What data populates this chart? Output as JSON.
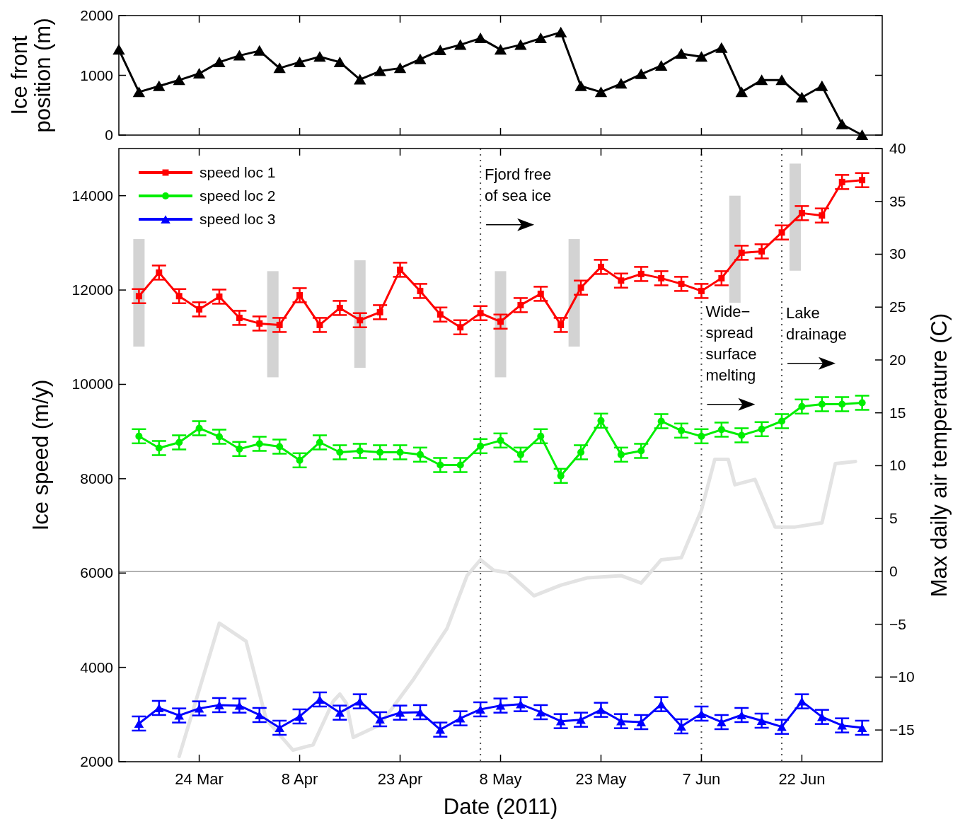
{
  "chart_data": [
    {
      "type": "line",
      "ylabel": "Ice front\nposition (m)",
      "x": [
        "2011-03-12",
        "2011-03-15",
        "2011-03-18",
        "2011-03-21",
        "2011-03-24",
        "2011-03-27",
        "2011-03-30",
        "2011-04-02",
        "2011-04-05",
        "2011-04-08",
        "2011-04-11",
        "2011-04-14",
        "2011-04-17",
        "2011-04-20",
        "2011-04-23",
        "2011-04-26",
        "2011-04-29",
        "2011-05-02",
        "2011-05-05",
        "2011-05-08",
        "2011-05-11",
        "2011-05-14",
        "2011-05-17",
        "2011-05-20",
        "2011-05-23",
        "2011-05-26",
        "2011-05-29",
        "2011-06-01",
        "2011-06-04",
        "2011-06-07",
        "2011-06-10",
        "2011-06-13",
        "2011-06-16",
        "2011-06-19",
        "2011-06-22",
        "2011-06-25",
        "2011-06-28",
        "2011-07-01"
      ],
      "values": [
        1430,
        720,
        820,
        920,
        1030,
        1220,
        1330,
        1410,
        1120,
        1220,
        1310,
        1220,
        930,
        1070,
        1120,
        1270,
        1420,
        1510,
        1620,
        1430,
        1510,
        1620,
        1720,
        820,
        720,
        860,
        1020,
        1160,
        1360,
        1310,
        1460,
        720,
        920,
        920,
        630,
        820,
        180,
        0
      ],
      "color": "#000000",
      "marker": "triangle",
      "xlim": [
        "2011-03-12",
        "2011-07-04"
      ],
      "ylim": [
        0,
        2000
      ],
      "yticks": [
        0,
        1000,
        2000
      ],
      "xticks": [
        {
          "value": "2011-03-24",
          "label": null
        },
        {
          "value": "2011-04-08",
          "label": null
        },
        {
          "value": "2011-04-23",
          "label": null
        },
        {
          "value": "2011-05-08",
          "label": null
        },
        {
          "value": "2011-05-23",
          "label": null
        },
        {
          "value": "2011-06-07",
          "label": null
        },
        {
          "value": "2011-06-22",
          "label": null
        }
      ],
      "tick_labels": "y"
    },
    {
      "type": "line",
      "xlabel": "Date (2011)",
      "ylabel": "Ice speed (m/y)",
      "y2label": "Max daily air temperature (C)",
      "legend": "top left",
      "xlim": [
        "2011-03-12",
        "2011-07-04"
      ],
      "ylim": [
        2000,
        15000
      ],
      "yticks": [
        2000,
        4000,
        6000,
        8000,
        10000,
        12000,
        14000
      ],
      "y2lim": [
        -18,
        40
      ],
      "y2ticks": [
        -15,
        -10,
        -5,
        0,
        5,
        10,
        15,
        20,
        25,
        30,
        35,
        40
      ],
      "xticks": [
        {
          "value": "2011-03-24",
          "label": "24 Mar"
        },
        {
          "value": "2011-04-08",
          "label": "8 Apr"
        },
        {
          "value": "2011-04-23",
          "label": "23 Apr"
        },
        {
          "value": "2011-05-08",
          "label": "8 May"
        },
        {
          "value": "2011-05-23",
          "label": "23 May"
        },
        {
          "value": "2011-06-07",
          "label": "7 Jun"
        },
        {
          "value": "2011-06-22",
          "label": "22 Jun"
        }
      ],
      "x": [
        "2011-03-15",
        "2011-03-18",
        "2011-03-21",
        "2011-03-24",
        "2011-03-27",
        "2011-03-30",
        "2011-04-02",
        "2011-04-05",
        "2011-04-08",
        "2011-04-11",
        "2011-04-14",
        "2011-04-17",
        "2011-04-20",
        "2011-04-23",
        "2011-04-26",
        "2011-04-29",
        "2011-05-02",
        "2011-05-05",
        "2011-05-08",
        "2011-05-11",
        "2011-05-14",
        "2011-05-17",
        "2011-05-20",
        "2011-05-23",
        "2011-05-26",
        "2011-05-29",
        "2011-06-01",
        "2011-06-04",
        "2011-06-07",
        "2011-06-10",
        "2011-06-13",
        "2011-06-16",
        "2011-06-19",
        "2011-06-22",
        "2011-06-25",
        "2011-06-28",
        "2011-07-01"
      ],
      "series": [
        {
          "type": "line",
          "axis": "y2",
          "color": "#e3e3e3",
          "marker": "none",
          "x": [
            "2011-03-21",
            "2011-03-27",
            "2011-03-31",
            "2011-04-03",
            "2011-04-07",
            "2011-04-10",
            "2011-04-13",
            "2011-04-14",
            "2011-04-15",
            "2011-04-16",
            "2011-04-20",
            "2011-04-25",
            "2011-04-30",
            "2011-05-03",
            "2011-05-05",
            "2011-05-07",
            "2011-05-09",
            "2011-05-10",
            "2011-05-13",
            "2011-05-17",
            "2011-05-21",
            "2011-05-26",
            "2011-05-29",
            "2011-06-01",
            "2011-06-04",
            "2011-06-07",
            "2011-06-09",
            "2011-06-11",
            "2011-06-12",
            "2011-06-15",
            "2011-06-18",
            "2011-06-21",
            "2011-06-25",
            "2011-06-27",
            "2011-06-30"
          ],
          "values": [
            -17.5,
            -4.9,
            -6.6,
            -14,
            -16.9,
            -16.4,
            -12.3,
            -11.6,
            -12.5,
            -15.7,
            -14.5,
            -10.2,
            -5.4,
            -0.4,
            1.1,
            0.1,
            -0.1,
            -0.6,
            -2.3,
            -1.3,
            -0.6,
            -0.4,
            -1.1,
            1.1,
            1.3,
            5.8,
            10.6,
            10.6,
            8.2,
            8.7,
            4.2,
            4.2,
            4.6,
            10.2,
            10.4
          ]
        },
        {
          "type": "bar",
          "color": "#d3d3d3",
          "x": [
            "2011-03-15",
            "2011-04-04",
            "2011-04-17",
            "2011-05-08",
            "2011-05-19",
            "2011-06-12",
            "2011-06-21"
          ],
          "base": [
            10800,
            10150,
            10350,
            10150,
            10800,
            11730,
            12410
          ],
          "values": [
            2280,
            2250,
            2280,
            2250,
            2280,
            2270,
            2270
          ]
        },
        {
          "name": "speed loc 1",
          "color": "#ff0000",
          "marker": "square",
          "values": [
            11870,
            12370,
            11870,
            11590,
            11860,
            11410,
            11290,
            11260,
            11890,
            11260,
            11620,
            11360,
            11530,
            12430,
            11980,
            11480,
            11210,
            11510,
            11330,
            11680,
            11920,
            11260,
            12050,
            12490,
            12200,
            12340,
            12250,
            12130,
            11980,
            12250,
            12790,
            12820,
            13220,
            13630,
            13580,
            14290,
            14330
          ],
          "errors": [
            150,
            150,
            150,
            150,
            150,
            150,
            150,
            150,
            150,
            150,
            150,
            150,
            150,
            150,
            150,
            150,
            150,
            150,
            150,
            150,
            150,
            150,
            150,
            150,
            150,
            150,
            150,
            150,
            150,
            150,
            150,
            150,
            150,
            150,
            150,
            150,
            150
          ]
        },
        {
          "name": "speed loc 2",
          "color": "#00ee00",
          "marker": "circle",
          "values": [
            8900,
            8650,
            8770,
            9070,
            8890,
            8630,
            8740,
            8680,
            8390,
            8770,
            8560,
            8590,
            8560,
            8560,
            8510,
            8290,
            8290,
            8690,
            8810,
            8510,
            8900,
            8060,
            8560,
            9230,
            8510,
            8590,
            9220,
            9020,
            8900,
            9040,
            8920,
            9050,
            9220,
            9530,
            9580,
            9580,
            9610
          ],
          "errors": [
            150,
            150,
            150,
            150,
            150,
            150,
            150,
            150,
            150,
            150,
            150,
            150,
            150,
            150,
            150,
            150,
            150,
            150,
            150,
            150,
            150,
            150,
            150,
            150,
            150,
            150,
            150,
            150,
            150,
            150,
            150,
            150,
            150,
            150,
            150,
            150,
            150
          ]
        },
        {
          "name": "speed loc 3",
          "color": "#0000ff",
          "marker": "triangle",
          "values": [
            2810,
            3140,
            2980,
            3130,
            3200,
            3190,
            2990,
            2720,
            2960,
            3320,
            3040,
            3280,
            2900,
            3040,
            3050,
            2680,
            2920,
            3110,
            3190,
            3220,
            3050,
            2860,
            2890,
            3100,
            2860,
            2840,
            3220,
            2750,
            3020,
            2840,
            2990,
            2870,
            2740,
            3280,
            2950,
            2770,
            2720
          ],
          "errors": [
            150,
            150,
            150,
            150,
            150,
            150,
            150,
            150,
            150,
            150,
            150,
            150,
            150,
            150,
            150,
            150,
            150,
            150,
            150,
            150,
            150,
            150,
            150,
            150,
            150,
            150,
            150,
            150,
            150,
            150,
            150,
            150,
            150,
            150,
            150,
            150,
            150
          ]
        }
      ],
      "ref_lines": [
        {
          "axis": "y2",
          "value": 0,
          "color": "#999999",
          "line_style": "solid"
        },
        {
          "axis": "x",
          "value": "2011-05-05",
          "color": "#555555",
          "line_style": "dotted"
        },
        {
          "axis": "x",
          "value": "2011-06-07",
          "color": "#555555",
          "line_style": "dotted"
        },
        {
          "axis": "x",
          "value": "2011-06-19",
          "color": "#555555",
          "line_style": "dotted"
        }
      ],
      "annotations": [
        {
          "text": "Fjord free\nof sea ice",
          "x": "2011-05-05",
          "y": 14450
        },
        {
          "text": "Wide−\nspread\nsurface\nmelting",
          "x": "2011-06-07",
          "y": 11540
        },
        {
          "text": "Lake\ndrainage",
          "x": "2011-06-19",
          "y": 11510
        }
      ]
    }
  ]
}
